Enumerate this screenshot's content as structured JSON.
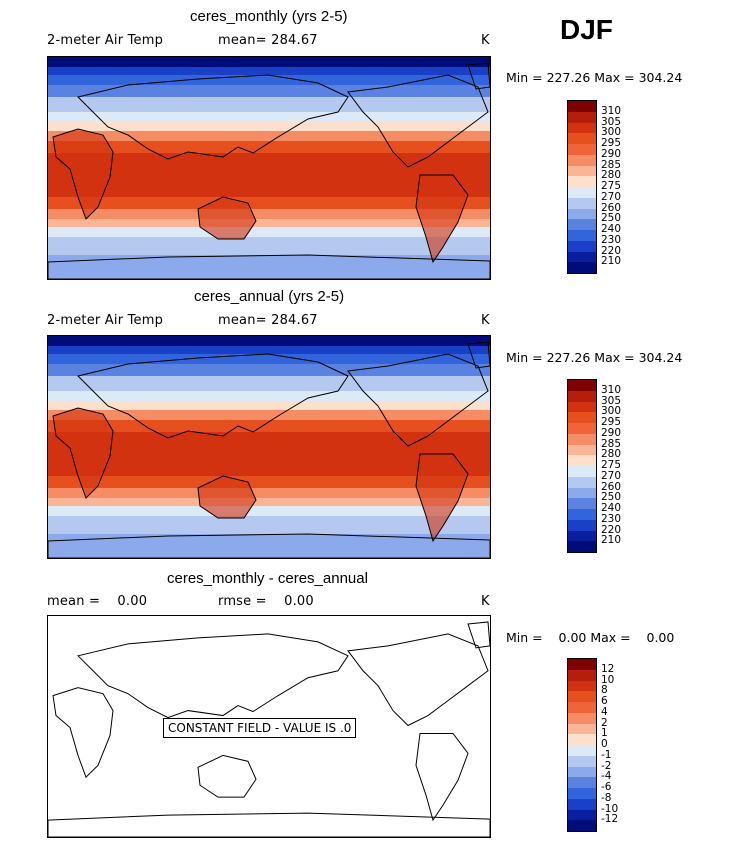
{
  "season": "DJF",
  "panels": [
    {
      "title": "ceres_monthly (yrs 2-5)",
      "left": "2-meter Air Temp",
      "mean_label": "mean= 284.67",
      "unit": "K",
      "minmax": "Min = 227.26 Max = 304.24",
      "colorbar_ticks": [
        "310",
        "305",
        "300",
        "295",
        "290",
        "285",
        "280",
        "275",
        "270",
        "260",
        "250",
        "240",
        "230",
        "220",
        "210"
      ]
    },
    {
      "title": "ceres_annual (yrs 2-5)",
      "left": "2-meter Air Temp",
      "mean_label": "mean= 284.67",
      "unit": "K",
      "minmax": "Min = 227.26 Max = 304.24",
      "colorbar_ticks": [
        "310",
        "305",
        "300",
        "295",
        "290",
        "285",
        "280",
        "275",
        "270",
        "260",
        "250",
        "240",
        "230",
        "220",
        "210"
      ]
    },
    {
      "title": "ceres_monthly - ceres_annual",
      "left": "mean =    0.00",
      "mean_label": "rmse =    0.00",
      "unit": "K",
      "minmax": "Min =    0.00 Max =    0.00",
      "constant_label": "CONSTANT FIELD - VALUE IS .0",
      "colorbar_ticks": [
        "12",
        "10",
        "8",
        "6",
        "4",
        "2",
        "1",
        "0",
        "-1",
        "-2",
        "-4",
        "-6",
        "-8",
        "-10",
        "-12"
      ]
    }
  ],
  "colors": [
    "#7f0000",
    "#b41e0a",
    "#d2320f",
    "#e6501e",
    "#f0643c",
    "#f58c64",
    "#fab496",
    "#fde0cc",
    "#dceaf8",
    "#b4c8f0",
    "#8caaeb",
    "#5a82e1",
    "#3264dc",
    "#1a40c8",
    "#0a1ea0",
    "#000c78"
  ]
}
